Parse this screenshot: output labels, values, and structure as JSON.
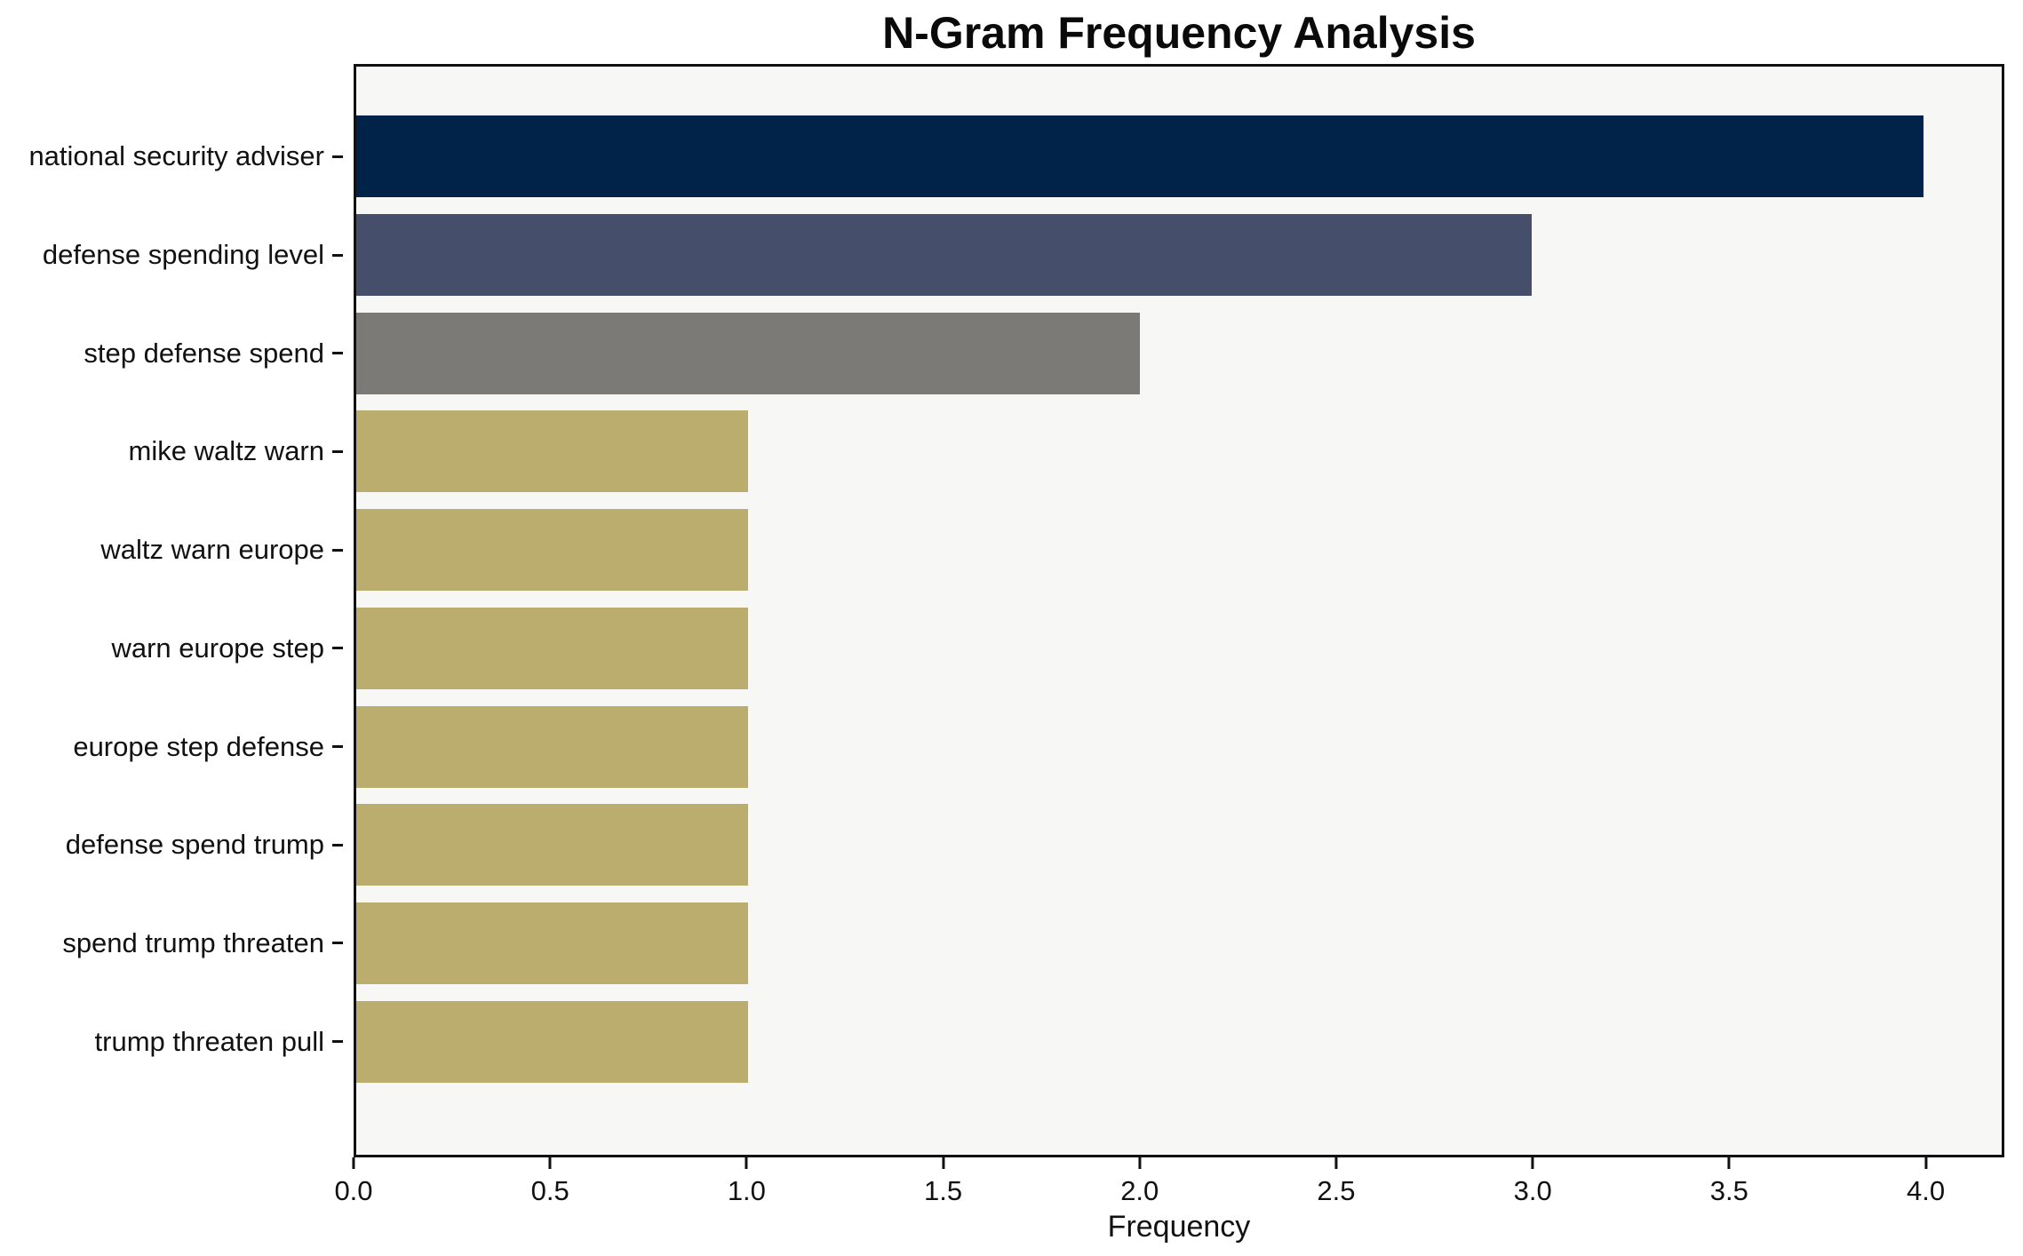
{
  "chart_data": {
    "type": "bar",
    "orientation": "horizontal",
    "title": "N-Gram Frequency Analysis",
    "xlabel": "Frequency",
    "ylabel": "",
    "categories": [
      "national security adviser",
      "defense spending level",
      "step defense spend",
      "mike waltz warn",
      "waltz warn europe",
      "warn europe step",
      "europe step defense",
      "defense spend trump",
      "spend trump threaten",
      "trump threaten pull"
    ],
    "values": [
      4,
      3,
      2,
      1,
      1,
      1,
      1,
      1,
      1,
      1
    ],
    "bar_colors": [
      "#012349",
      "#454f6b",
      "#7b7a77",
      "#bbad6e",
      "#bbad6e",
      "#bbad6e",
      "#bbad6e",
      "#bbad6e",
      "#bbad6e",
      "#bbad6e"
    ],
    "xlim": [
      0,
      4.2
    ],
    "xtick_values": [
      0,
      0.5,
      1,
      1.5,
      2,
      2.5,
      3,
      3.5,
      4
    ],
    "xtick_labels": [
      "0.0",
      "0.5",
      "1.0",
      "1.5",
      "2.0",
      "2.5",
      "3.0",
      "3.5",
      "4.0"
    ],
    "grid": false,
    "legend": null,
    "plot_background": "#f7f7f6",
    "figure_background": "#ffffff",
    "spine_color": "#111111"
  }
}
